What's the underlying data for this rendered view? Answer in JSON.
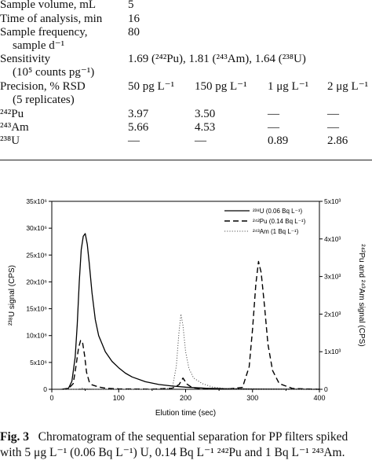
{
  "table": {
    "rows": [
      {
        "label": "Sample volume, mL",
        "value": "5"
      },
      {
        "label": "Time of analysis, min",
        "value": "16"
      },
      {
        "label": "Sample frequency,",
        "label2": "sample d⁻¹",
        "value": "80"
      },
      {
        "label": "Sensitivity",
        "label2": "(10⁵ counts pg⁻¹)",
        "value": "1.69 (²⁴²Pu), 1.81 (²⁴³Am), 1.64 (²³⁸U)"
      },
      {
        "label": "Precision, % RSD",
        "label2": "(5 replicates)",
        "cols": [
          "50 pg L⁻¹",
          "150 pg L⁻¹",
          "1 μg L⁻¹",
          "2 μg L⁻¹"
        ]
      },
      {
        "label": "²⁴²Pu",
        "cols": [
          "3.97",
          "3.50",
          "—",
          "—"
        ]
      },
      {
        "label": "²⁴³Am",
        "cols": [
          "5.66",
          "4.53",
          "—",
          "—"
        ]
      },
      {
        "label": "²³⁸U",
        "cols": [
          "—",
          "—",
          "0.89",
          "2.86"
        ]
      }
    ]
  },
  "chart_data": {
    "type": "line",
    "xlabel": "Elution time (sec)",
    "ylabel_left": "²³⁸U signal (CPS)",
    "ylabel_right": "²⁴²Pu and ²⁴³Am signal (CPS)",
    "xlim": [
      0,
      400
    ],
    "ylim_left": [
      0,
      35000000
    ],
    "ylim_right": [
      0,
      5000
    ],
    "x_ticks": [
      0,
      100,
      200,
      300,
      400
    ],
    "y_left_ticks": [
      "0",
      "5x10⁶",
      "10x10⁶",
      "15x10⁶",
      "20x10⁶",
      "25x10⁶",
      "30x10⁶",
      "35x10⁶"
    ],
    "y_right_ticks": [
      "0",
      "1x10³",
      "2x10³",
      "3x10³",
      "4x10³",
      "5x10³"
    ],
    "legend_position": "top-right",
    "series": [
      {
        "name": "²³⁸U (0.06 Bq L⁻¹)",
        "axis": "left",
        "style": "solid",
        "x": [
          15,
          25,
          30,
          35,
          38,
          41,
          44,
          47,
          50,
          53,
          56,
          60,
          65,
          70,
          80,
          90,
          100,
          110,
          120,
          140,
          160,
          180,
          200,
          230,
          260,
          300,
          400
        ],
        "y": [
          0,
          200000,
          1500000,
          6000000,
          12000000,
          20000000,
          26000000,
          28500000,
          29000000,
          27000000,
          23500000,
          18000000,
          13000000,
          10000000,
          7000000,
          5200000,
          4000000,
          3000000,
          2300000,
          1400000,
          900000,
          600000,
          400000,
          200000,
          100000,
          50000,
          0
        ]
      },
      {
        "name": "²⁴²Pu (0.14 Bq L⁻¹)",
        "axis": "right",
        "style": "dashed",
        "x": [
          15,
          25,
          32,
          36,
          40,
          43,
          46,
          49,
          52,
          56,
          60,
          70,
          80,
          100,
          150,
          180,
          190,
          196,
          202,
          210,
          230,
          260,
          285,
          295,
          300,
          305,
          309,
          313,
          318,
          323,
          330,
          340,
          360,
          400
        ],
        "y": [
          0,
          20,
          150,
          600,
          1100,
          1300,
          1250,
          900,
          450,
          200,
          120,
          60,
          30,
          10,
          5,
          30,
          120,
          300,
          140,
          40,
          10,
          5,
          50,
          600,
          1600,
          2800,
          3400,
          3100,
          2200,
          1200,
          500,
          150,
          20,
          0
        ]
      },
      {
        "name": "²⁴³Am (1 Bq L⁻¹)",
        "axis": "right",
        "style": "dotted",
        "x": [
          15,
          40,
          45,
          50,
          60,
          100,
          150,
          180,
          186,
          190,
          193,
          196,
          200,
          205,
          212,
          225,
          240,
          260,
          280,
          400
        ],
        "y": [
          0,
          0,
          30,
          15,
          5,
          0,
          0,
          30,
          600,
          1500,
          2000,
          1700,
          1000,
          550,
          300,
          150,
          60,
          20,
          5,
          0
        ]
      }
    ]
  },
  "caption": {
    "label": "Fig. 3",
    "line1": "Chromatogram of the sequential separation for PP filters spiked",
    "line2": "with 5 μg L⁻¹ (0.06 Bq L⁻¹) U, 0.14 Bq L⁻¹ ²⁴²Pu and 1 Bq L⁻¹ ²⁴³Am."
  }
}
